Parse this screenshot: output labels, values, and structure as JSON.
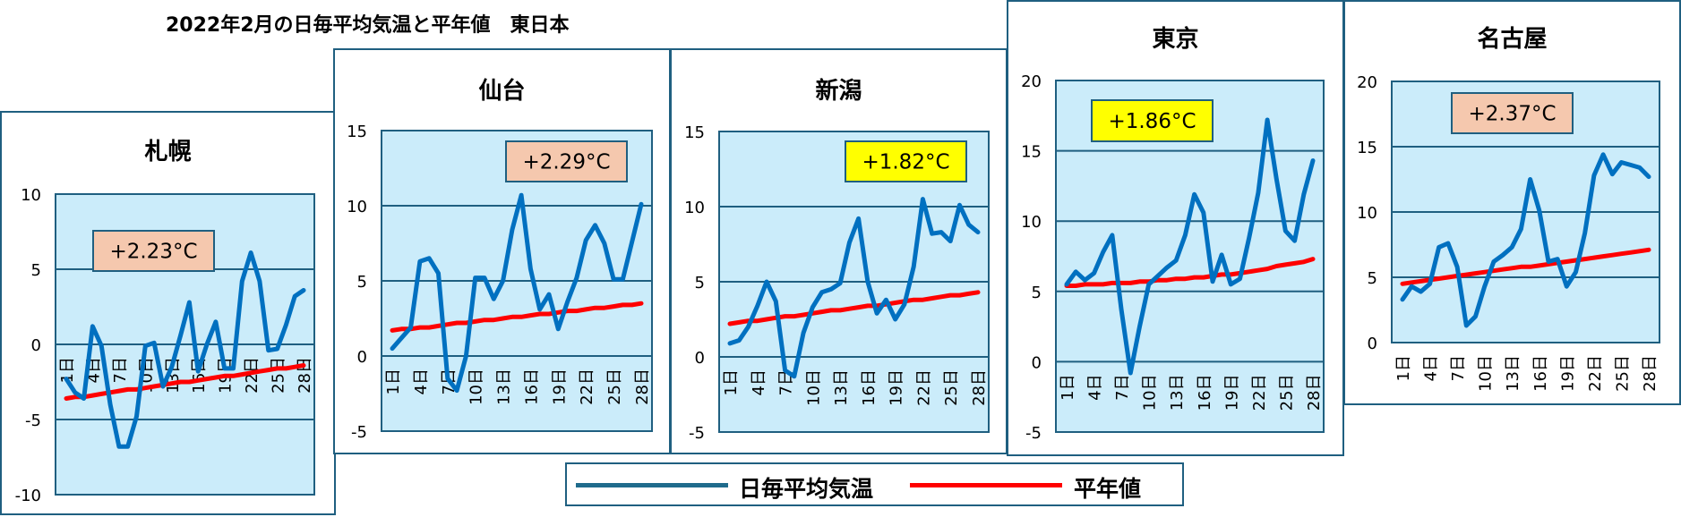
{
  "title": "2022年2月の日毎平均気温と平年値　東日本",
  "legend": {
    "daily": "日毎平均気温",
    "normal": "平年値"
  },
  "colors": {
    "daily": "#0070c0",
    "normal": "#ff0000",
    "plot_bg": "#cbecfa",
    "border": "#1f5f80",
    "peach": "#f5c8ae",
    "yellow": "#ffff00"
  },
  "chart_data": [
    {
      "type": "line",
      "title": "札幌",
      "anomaly": "+2.23°C",
      "anomaly_color": "peach",
      "ylim": [
        -10,
        10
      ],
      "yticks": [
        "10",
        "5",
        "0",
        "-5",
        "-10"
      ],
      "xticks": [
        "1日",
        "4日",
        "7日",
        "10日",
        "13日",
        "16日",
        "19日",
        "22日",
        "25日",
        "28日"
      ],
      "series": [
        {
          "name": "日毎平均気温",
          "values": [
            -2.3,
            -3.2,
            -3.6,
            1.2,
            -0.1,
            -4.0,
            -6.8,
            -6.8,
            -4.8,
            -0.1,
            0.1,
            -2.8,
            -1.5,
            0.6,
            2.8,
            -1.8,
            0,
            1.5,
            -1.6,
            -1.6,
            4.2,
            6.1,
            4.2,
            -0.4,
            -0.3,
            1.3,
            3.2,
            3.6
          ]
        },
        {
          "name": "平年値",
          "values": [
            -3.6,
            -3.5,
            -3.5,
            -3.4,
            -3.3,
            -3.2,
            -3.1,
            -3.0,
            -3.0,
            -2.9,
            -2.8,
            -2.7,
            -2.6,
            -2.5,
            -2.5,
            -2.4,
            -2.3,
            -2.2,
            -2.1,
            -2.1,
            -2.0,
            -1.9,
            -1.8,
            -1.7,
            -1.6,
            -1.6,
            -1.5,
            -1.4
          ]
        }
      ]
    },
    {
      "type": "line",
      "title": "仙台",
      "anomaly": "+2.29°C",
      "anomaly_color": "peach",
      "ylim": [
        -5,
        15
      ],
      "yticks": [
        "15",
        "10",
        "5",
        "0",
        "-5"
      ],
      "xticks": [
        "1日",
        "4日",
        "7日",
        "10日",
        "13日",
        "16日",
        "19日",
        "22日",
        "25日",
        "28日"
      ],
      "series": [
        {
          "name": "日毎平均気温",
          "values": [
            0.5,
            1.2,
            1.9,
            6.3,
            6.5,
            5.5,
            -1.5,
            -2.3,
            0,
            5.2,
            5.2,
            3.8,
            5.0,
            8.4,
            10.7,
            5.8,
            3.1,
            4.1,
            1.8,
            3.6,
            5.2,
            7.7,
            8.7,
            7.5,
            5.1,
            5.1,
            7.6,
            10.1
          ]
        },
        {
          "name": "平年値",
          "values": [
            1.7,
            1.8,
            1.8,
            1.9,
            1.9,
            2.0,
            2.1,
            2.2,
            2.2,
            2.3,
            2.4,
            2.4,
            2.5,
            2.6,
            2.6,
            2.7,
            2.8,
            2.8,
            2.9,
            3.0,
            3.0,
            3.1,
            3.2,
            3.2,
            3.3,
            3.4,
            3.4,
            3.5
          ]
        }
      ]
    },
    {
      "type": "line",
      "title": "新潟",
      "anomaly": "+1.82°C",
      "anomaly_color": "yellow",
      "ylim": [
        -5,
        15
      ],
      "yticks": [
        "15",
        "10",
        "5",
        "0",
        "-5"
      ],
      "xticks": [
        "1日",
        "4日",
        "7日",
        "10日",
        "13日",
        "16日",
        "19日",
        "22日",
        "25日",
        "28日"
      ],
      "series": [
        {
          "name": "日毎平均気温",
          "values": [
            0.9,
            1.1,
            2.0,
            3.4,
            5.0,
            3.7,
            -0.9,
            -1.3,
            1.6,
            3.3,
            4.3,
            4.5,
            4.9,
            7.6,
            9.2,
            5.0,
            2.9,
            3.8,
            2.5,
            3.5,
            6.0,
            10.5,
            8.2,
            8.3,
            7.7,
            10.1,
            8.8,
            8.3
          ]
        },
        {
          "name": "平年値",
          "values": [
            2.2,
            2.3,
            2.4,
            2.4,
            2.5,
            2.6,
            2.7,
            2.7,
            2.8,
            2.9,
            3.0,
            3.1,
            3.1,
            3.2,
            3.3,
            3.4,
            3.4,
            3.5,
            3.6,
            3.7,
            3.8,
            3.8,
            3.9,
            4.0,
            4.1,
            4.1,
            4.2,
            4.3
          ]
        }
      ]
    },
    {
      "type": "line",
      "title": "東京",
      "anomaly": "+1.86°C",
      "anomaly_color": "yellow",
      "ylim": [
        -5,
        20
      ],
      "yticks": [
        "20",
        "15",
        "10",
        "5",
        "0",
        "-5"
      ],
      "xticks": [
        "1日",
        "4日",
        "7日",
        "10日",
        "13日",
        "16日",
        "19日",
        "22日",
        "25日",
        "28日"
      ],
      "series": [
        {
          "name": "日毎平均気温",
          "values": [
            5.5,
            6.4,
            5.8,
            6.3,
            7.8,
            9.0,
            3.7,
            -0.8,
            2.5,
            5.5,
            6.1,
            6.7,
            7.2,
            9.0,
            11.9,
            10.6,
            5.7,
            7.6,
            5.5,
            5.9,
            8.8,
            12.0,
            17.2,
            13.0,
            9.3,
            8.6,
            11.9,
            14.3
          ]
        },
        {
          "name": "平年値",
          "values": [
            5.4,
            5.4,
            5.5,
            5.5,
            5.5,
            5.6,
            5.6,
            5.6,
            5.7,
            5.7,
            5.8,
            5.8,
            5.9,
            5.9,
            6.0,
            6.0,
            6.1,
            6.2,
            6.2,
            6.3,
            6.4,
            6.5,
            6.6,
            6.8,
            6.9,
            7.0,
            7.1,
            7.3
          ]
        }
      ]
    },
    {
      "type": "line",
      "title": "名古屋",
      "anomaly": "+2.37°C",
      "anomaly_color": "peach",
      "ylim": [
        0,
        20
      ],
      "yticks": [
        "20",
        "15",
        "10",
        "5",
        "0"
      ],
      "xticks": [
        "1日",
        "4日",
        "7日",
        "10日",
        "13日",
        "16日",
        "19日",
        "22日",
        "25日",
        "28日"
      ],
      "series": [
        {
          "name": "日毎平均気温",
          "values": [
            3.3,
            4.3,
            3.9,
            4.5,
            7.3,
            7.6,
            5.8,
            1.3,
            2.0,
            4.3,
            6.2,
            6.7,
            7.3,
            8.7,
            12.5,
            10.1,
            6.2,
            6.4,
            4.3,
            5.4,
            8.4,
            12.8,
            14.4,
            12.9,
            13.8,
            13.6,
            13.4,
            12.7
          ]
        },
        {
          "name": "平年値",
          "values": [
            4.5,
            4.6,
            4.7,
            4.8,
            4.9,
            5.0,
            5.1,
            5.2,
            5.3,
            5.4,
            5.5,
            5.6,
            5.7,
            5.8,
            5.8,
            5.9,
            6.0,
            6.1,
            6.2,
            6.3,
            6.4,
            6.5,
            6.6,
            6.7,
            6.8,
            6.9,
            7.0,
            7.1
          ]
        }
      ]
    }
  ]
}
